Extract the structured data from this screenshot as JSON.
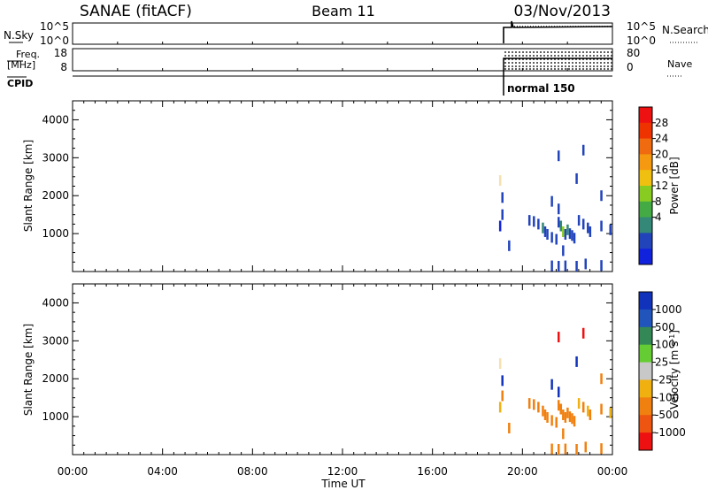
{
  "header": {
    "station": "SANAE (fitACF)",
    "beam": "Beam 11",
    "date": "03/Nov/2013"
  },
  "panels": {
    "nsky": {
      "label": "N.Sky",
      "right_label": "N.Search",
      "ticks": [
        "10^5",
        "10^0"
      ],
      "right_ticks": [
        "10^5",
        "10^0"
      ]
    },
    "freq": {
      "label_line1": "Freq.",
      "label_line2": "[MHz]",
      "right_label": "Nave",
      "ticks": [
        "18",
        "8"
      ],
      "right_ticks": [
        "80",
        "0"
      ]
    },
    "cpid": {
      "label": "CPID",
      "mode": "normal 150"
    }
  },
  "x_axis": {
    "label": "Time UT",
    "ticks": [
      "00:00",
      "04:00",
      "08:00",
      "12:00",
      "16:00",
      "20:00",
      "00:00"
    ]
  },
  "colorbars": {
    "power": {
      "label": "Power [dB]",
      "ticks": [
        "28",
        "24",
        "20",
        "16",
        "12",
        "8",
        "4"
      ],
      "colors": [
        "#ee1111",
        "#ee3300",
        "#f06a10",
        "#f59a10",
        "#f0c010",
        "#88cc22",
        "#44aa44",
        "#338877",
        "#2244bb",
        "#1122dd"
      ]
    },
    "velocity": {
      "label": "Velocity [m s^-1]",
      "ticks": [
        "1000",
        "500",
        "100",
        "25",
        "-25",
        "-100",
        "-500",
        "-1000"
      ],
      "colors": [
        "#1133bb",
        "#2255bb",
        "#338855",
        "#66cc33",
        "#c8c8c8",
        "#f0b010",
        "#f08010",
        "#ee5510",
        "#ee1111"
      ]
    }
  },
  "chart_data": [
    {
      "type": "scatter",
      "name": "power",
      "xlabel": "Time UT",
      "ylabel": "Slant Range [km]",
      "xlim": [
        0,
        24
      ],
      "ylim": [
        0,
        4500
      ],
      "y_ticks": [
        1000,
        2000,
        3000,
        4000
      ],
      "colorbar_label": "Power [dB]",
      "points": [
        {
          "x": 19.0,
          "y": 1200,
          "c": "#1122dd"
        },
        {
          "x": 19.1,
          "y": 1950,
          "c": "#2244bb"
        },
        {
          "x": 19.1,
          "y": 1500,
          "c": "#2244bb"
        },
        {
          "x": 19.0,
          "y": 2400,
          "c": "#f5e0b0"
        },
        {
          "x": 19.4,
          "y": 680,
          "c": "#2244bb"
        },
        {
          "x": 20.3,
          "y": 1350,
          "c": "#2244bb"
        },
        {
          "x": 20.5,
          "y": 1320,
          "c": "#2244bb"
        },
        {
          "x": 20.7,
          "y": 1250,
          "c": "#2244bb"
        },
        {
          "x": 20.9,
          "y": 1150,
          "c": "#338877"
        },
        {
          "x": 21.0,
          "y": 1050,
          "c": "#2244bb"
        },
        {
          "x": 21.1,
          "y": 980,
          "c": "#2244bb"
        },
        {
          "x": 21.3,
          "y": 900,
          "c": "#2244bb"
        },
        {
          "x": 21.5,
          "y": 850,
          "c": "#2244bb"
        },
        {
          "x": 21.6,
          "y": 1300,
          "c": "#2244bb"
        },
        {
          "x": 21.7,
          "y": 1200,
          "c": "#338877"
        },
        {
          "x": 21.8,
          "y": 1050,
          "c": "#88cc22"
        },
        {
          "x": 21.9,
          "y": 980,
          "c": "#2244bb"
        },
        {
          "x": 22.0,
          "y": 1100,
          "c": "#338877"
        },
        {
          "x": 22.1,
          "y": 1000,
          "c": "#2244bb"
        },
        {
          "x": 22.2,
          "y": 950,
          "c": "#2244bb"
        },
        {
          "x": 22.3,
          "y": 880,
          "c": "#2244bb"
        },
        {
          "x": 22.5,
          "y": 1350,
          "c": "#2244bb"
        },
        {
          "x": 22.7,
          "y": 1250,
          "c": "#2244bb"
        },
        {
          "x": 22.9,
          "y": 1150,
          "c": "#2244bb"
        },
        {
          "x": 23.0,
          "y": 1050,
          "c": "#2244bb"
        },
        {
          "x": 21.6,
          "y": 3050,
          "c": "#2244bb"
        },
        {
          "x": 22.7,
          "y": 3200,
          "c": "#2244bb"
        },
        {
          "x": 21.3,
          "y": 1850,
          "c": "#2244bb"
        },
        {
          "x": 21.6,
          "y": 1650,
          "c": "#2244bb"
        },
        {
          "x": 23.5,
          "y": 2000,
          "c": "#2244bb"
        },
        {
          "x": 23.5,
          "y": 1200,
          "c": "#2244bb"
        },
        {
          "x": 23.9,
          "y": 1100,
          "c": "#2244bb"
        },
        {
          "x": 21.3,
          "y": 150,
          "c": "#2244bb"
        },
        {
          "x": 21.6,
          "y": 140,
          "c": "#2244bb"
        },
        {
          "x": 21.9,
          "y": 150,
          "c": "#2244bb"
        },
        {
          "x": 22.4,
          "y": 140,
          "c": "#2244bb"
        },
        {
          "x": 22.8,
          "y": 200,
          "c": "#2244bb"
        },
        {
          "x": 23.5,
          "y": 160,
          "c": "#2244bb"
        },
        {
          "x": 22.4,
          "y": 2450,
          "c": "#2244bb"
        },
        {
          "x": 21.8,
          "y": 550,
          "c": "#2244bb"
        }
      ]
    },
    {
      "type": "scatter",
      "name": "velocity",
      "xlabel": "Time UT",
      "ylabel": "Slant Range [km]",
      "xlim": [
        0,
        24
      ],
      "ylim": [
        0,
        4500
      ],
      "y_ticks": [
        1000,
        2000,
        3000,
        4000
      ],
      "colorbar_label": "Velocity [m s^-1]",
      "points": [
        {
          "x": 19.0,
          "y": 1250,
          "c": "#f0b010"
        },
        {
          "x": 19.1,
          "y": 1950,
          "c": "#1133bb"
        },
        {
          "x": 19.1,
          "y": 1550,
          "c": "#f08010"
        },
        {
          "x": 19.0,
          "y": 2400,
          "c": "#f5e0b0"
        },
        {
          "x": 19.4,
          "y": 700,
          "c": "#f08010"
        },
        {
          "x": 20.3,
          "y": 1350,
          "c": "#f08010"
        },
        {
          "x": 20.5,
          "y": 1320,
          "c": "#f08010"
        },
        {
          "x": 20.7,
          "y": 1250,
          "c": "#f08010"
        },
        {
          "x": 20.9,
          "y": 1150,
          "c": "#f08010"
        },
        {
          "x": 21.0,
          "y": 1050,
          "c": "#f08010"
        },
        {
          "x": 21.1,
          "y": 980,
          "c": "#f08010"
        },
        {
          "x": 21.3,
          "y": 900,
          "c": "#f08010"
        },
        {
          "x": 21.5,
          "y": 850,
          "c": "#f08010"
        },
        {
          "x": 21.6,
          "y": 1300,
          "c": "#f08010"
        },
        {
          "x": 21.7,
          "y": 1200,
          "c": "#f08010"
        },
        {
          "x": 21.8,
          "y": 1050,
          "c": "#f08010"
        },
        {
          "x": 21.9,
          "y": 980,
          "c": "#f08010"
        },
        {
          "x": 22.0,
          "y": 1100,
          "c": "#f08010"
        },
        {
          "x": 22.1,
          "y": 1000,
          "c": "#f08010"
        },
        {
          "x": 22.2,
          "y": 950,
          "c": "#f08010"
        },
        {
          "x": 22.3,
          "y": 880,
          "c": "#f08010"
        },
        {
          "x": 22.5,
          "y": 1350,
          "c": "#f0b010"
        },
        {
          "x": 22.7,
          "y": 1250,
          "c": "#f08010"
        },
        {
          "x": 22.9,
          "y": 1150,
          "c": "#f0b010"
        },
        {
          "x": 23.0,
          "y": 1050,
          "c": "#f08010"
        },
        {
          "x": 21.6,
          "y": 3100,
          "c": "#ee1111"
        },
        {
          "x": 22.7,
          "y": 3200,
          "c": "#ee1111"
        },
        {
          "x": 21.3,
          "y": 1850,
          "c": "#1133bb"
        },
        {
          "x": 21.6,
          "y": 1650,
          "c": "#1133bb"
        },
        {
          "x": 23.5,
          "y": 2000,
          "c": "#f08010"
        },
        {
          "x": 23.5,
          "y": 1200,
          "c": "#f08010"
        },
        {
          "x": 23.9,
          "y": 1100,
          "c": "#f0b010"
        },
        {
          "x": 21.3,
          "y": 150,
          "c": "#f08010"
        },
        {
          "x": 21.6,
          "y": 140,
          "c": "#f08010"
        },
        {
          "x": 21.9,
          "y": 150,
          "c": "#f08010"
        },
        {
          "x": 22.4,
          "y": 140,
          "c": "#f08010"
        },
        {
          "x": 22.8,
          "y": 200,
          "c": "#f08010"
        },
        {
          "x": 23.5,
          "y": 160,
          "c": "#f08010"
        },
        {
          "x": 22.4,
          "y": 2450,
          "c": "#1133bb"
        },
        {
          "x": 21.8,
          "y": 550,
          "c": "#f08010"
        }
      ]
    }
  ]
}
